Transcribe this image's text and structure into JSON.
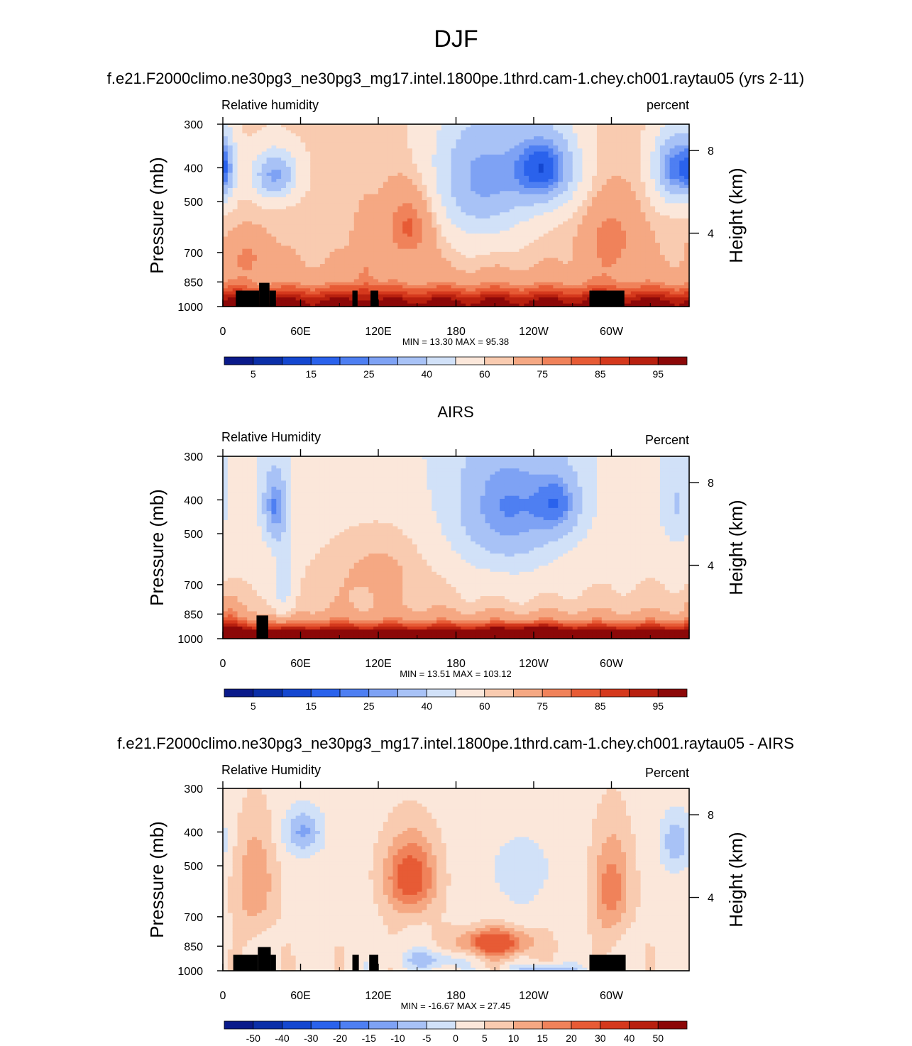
{
  "page": {
    "title": "DJF"
  },
  "colorbar_palette": [
    "#0a1a8a",
    "#0b2fa8",
    "#1447d0",
    "#2a62ec",
    "#4e7ff2",
    "#7ea2f4",
    "#a8c2f6",
    "#d1e1f8",
    "#fbe7da",
    "#f9cbb0",
    "#f5a883",
    "#f0825a",
    "#e75b35",
    "#d5391d",
    "#b8200f",
    "#8c0808"
  ],
  "chart_data": [
    {
      "type": "heatmap",
      "title": "f.e21.F2000climo.ne30pg3_ne30pg3_mg17.intel.1800pe.1thrd.cam-1.chey.ch001.raytau05 (yrs 2-11)",
      "left_label": "Relative humidity",
      "right_label": "percent",
      "ylabel": "Pressure (mb)",
      "y2label": "Height (km)",
      "xlabel": "",
      "x_ticks": [
        "0",
        "60E",
        "120E",
        "180",
        "120W",
        "60W"
      ],
      "x_tick_positions": [
        0,
        60,
        120,
        180,
        240,
        300
      ],
      "xlim": [
        0,
        360
      ],
      "y_ticks": [
        "300",
        "400",
        "500",
        "700",
        "850",
        "1000"
      ],
      "y_tick_values": [
        300,
        400,
        500,
        700,
        850,
        1000
      ],
      "ylim": [
        300,
        1000
      ],
      "y_scale": "log",
      "y2_ticks": [
        "8",
        "4"
      ],
      "y2_tick_pressures": [
        357,
        616
      ],
      "stats": "MIN =  13.30  MAX =  95.38",
      "colorbar_labels": [
        "5",
        "15",
        "25",
        "40",
        "60",
        "75",
        "85",
        "95"
      ],
      "colorbar_levels": [
        0,
        5,
        10,
        15,
        20,
        25,
        30,
        40,
        50,
        60,
        65,
        75,
        80,
        85,
        90,
        95,
        100
      ],
      "field": {
        "base": 62,
        "base_slope": 0.006,
        "surface_boost": 32,
        "surface_depth": 130,
        "anomalies": [
          {
            "lon": 40,
            "p": 420,
            "amp": -35,
            "slon": 18,
            "sp": 70
          },
          {
            "lon": 2,
            "p": 400,
            "amp": -25,
            "slon": 8,
            "sp": 90
          },
          {
            "lon": 200,
            "p": 430,
            "amp": -35,
            "slon": 40,
            "sp": 200
          },
          {
            "lon": 250,
            "p": 400,
            "amp": -40,
            "slon": 25,
            "sp": 110
          },
          {
            "lon": 348,
            "p": 400,
            "amp": -40,
            "slon": 16,
            "sp": 100
          },
          {
            "lon": 145,
            "p": 580,
            "amp": 20,
            "slon": 20,
            "sp": 150
          },
          {
            "lon": 20,
            "p": 720,
            "amp": 12,
            "slon": 15,
            "sp": 100
          },
          {
            "lon": 300,
            "p": 640,
            "amp": 15,
            "slon": 20,
            "sp": 170
          },
          {
            "lon": 110,
            "p": 750,
            "amp": 10,
            "slon": 8,
            "sp": 200
          }
        ]
      },
      "masks": [
        {
          "lon": [
            10,
            28
          ],
          "p_top": 900
        },
        {
          "lon": [
            28,
            36
          ],
          "p_top": 855
        },
        {
          "lon": [
            36,
            41
          ],
          "p_top": 900
        },
        {
          "lon": [
            100,
            104
          ],
          "p_top": 900
        },
        {
          "lon": [
            114,
            120
          ],
          "p_top": 900
        },
        {
          "lon": [
            283,
            310
          ],
          "p_top": 900
        }
      ]
    },
    {
      "type": "heatmap",
      "title": "AIRS",
      "left_label": "Relative Humidity",
      "right_label": "Percent",
      "ylabel": "Pressure (mb)",
      "y2label": "Height (km)",
      "xlabel": "",
      "x_ticks": [
        "0",
        "60E",
        "120E",
        "180",
        "120W",
        "60W"
      ],
      "x_tick_positions": [
        0,
        60,
        120,
        180,
        240,
        300
      ],
      "xlim": [
        0,
        360
      ],
      "y_ticks": [
        "300",
        "400",
        "500",
        "700",
        "850",
        "1000"
      ],
      "y_tick_values": [
        300,
        400,
        500,
        700,
        850,
        1000
      ],
      "ylim": [
        300,
        1000
      ],
      "y_scale": "log",
      "y2_ticks": [
        "8",
        "4"
      ],
      "y2_tick_pressures": [
        357,
        616
      ],
      "stats": "MIN =  13.51  MAX = 103.12",
      "colorbar_labels": [
        "5",
        "15",
        "25",
        "40",
        "60",
        "75",
        "85",
        "95"
      ],
      "colorbar_levels": [
        0,
        5,
        10,
        15,
        20,
        25,
        30,
        40,
        50,
        60,
        65,
        75,
        80,
        85,
        90,
        95,
        100
      ],
      "field": {
        "base": 52,
        "base_slope": 0.02,
        "surface_boost": 42,
        "surface_depth": 100,
        "anomalies": [
          {
            "lon": 40,
            "p": 420,
            "amp": -30,
            "slon": 10,
            "sp": 110
          },
          {
            "lon": 47,
            "p": 700,
            "amp": -18,
            "slon": 8,
            "sp": 180
          },
          {
            "lon": 220,
            "p": 430,
            "amp": -30,
            "slon": 45,
            "sp": 200
          },
          {
            "lon": 260,
            "p": 410,
            "amp": -20,
            "slon": 18,
            "sp": 90
          },
          {
            "lon": 350,
            "p": 420,
            "amp": -15,
            "slon": 12,
            "sp": 120
          },
          {
            "lon": 120,
            "p": 600,
            "amp": 8,
            "slon": 45,
            "sp": 200
          },
          {
            "lon": 5,
            "p": 850,
            "amp": 10,
            "slon": 8,
            "sp": 90
          },
          {
            "lon": 240,
            "p": 960,
            "amp": 8,
            "slon": 25,
            "sp": 60
          }
        ]
      },
      "masks": [
        {
          "lon": [
            26,
            35
          ],
          "p_top": 858
        }
      ]
    },
    {
      "type": "heatmap",
      "title": "f.e21.F2000climo.ne30pg3_ne30pg3_mg17.intel.1800pe.1thrd.cam-1.chey.ch001.raytau05 - AIRS",
      "left_label": "Relative Humidity",
      "right_label": "Percent",
      "ylabel": "Pressure (mb)",
      "y2label": "Height (km)",
      "xlabel": "",
      "x_ticks": [
        "0",
        "60E",
        "120E",
        "180",
        "120W",
        "60W"
      ],
      "x_tick_positions": [
        0,
        60,
        120,
        180,
        240,
        300
      ],
      "xlim": [
        0,
        360
      ],
      "y_ticks": [
        "300",
        "400",
        "500",
        "700",
        "850",
        "1000"
      ],
      "y_tick_values": [
        300,
        400,
        500,
        700,
        850,
        1000
      ],
      "ylim": [
        300,
        1000
      ],
      "y_scale": "log",
      "y2_ticks": [
        "8",
        "4"
      ],
      "y2_tick_pressures": [
        357,
        616
      ],
      "stats": "MIN = -16.67  MAX =  27.45",
      "colorbar_labels": [
        "-50",
        "-40",
        "-30",
        "-20",
        "-15",
        "-10",
        "-5",
        "0",
        "5",
        "10",
        "15",
        "20",
        "30",
        "40",
        "50"
      ],
      "colorbar_levels": [
        -100,
        -50,
        -40,
        -30,
        -20,
        -15,
        -10,
        -5,
        0,
        5,
        10,
        15,
        20,
        30,
        40,
        50,
        100
      ],
      "field": {
        "base": 3,
        "base_slope": 0,
        "surface_boost": 0,
        "surface_depth": 100,
        "anomalies": [
          {
            "lon": 145,
            "p": 540,
            "amp": 22,
            "slon": 20,
            "sp": 140
          },
          {
            "lon": 210,
            "p": 830,
            "amp": 24,
            "slon": 28,
            "sp": 80
          },
          {
            "lon": 25,
            "p": 560,
            "amp": 12,
            "slon": 15,
            "sp": 200
          },
          {
            "lon": 300,
            "p": 580,
            "amp": 15,
            "slon": 15,
            "sp": 200
          },
          {
            "lon": 62,
            "p": 400,
            "amp": -14,
            "slon": 15,
            "sp": 60
          },
          {
            "lon": 350,
            "p": 430,
            "amp": -12,
            "slon": 12,
            "sp": 80
          },
          {
            "lon": 160,
            "p": 930,
            "amp": -10,
            "slon": 25,
            "sp": 60
          },
          {
            "lon": 250,
            "p": 990,
            "amp": -12,
            "slon": 25,
            "sp": 30
          },
          {
            "lon": 230,
            "p": 520,
            "amp": -4,
            "slon": 40,
            "sp": 200
          }
        ]
      },
      "masks": [
        {
          "lon": [
            8,
            27
          ],
          "p_top": 900
        },
        {
          "lon": [
            27,
            37
          ],
          "p_top": 855
        },
        {
          "lon": [
            37,
            41
          ],
          "p_top": 900
        },
        {
          "lon": [
            100,
            105
          ],
          "p_top": 900
        },
        {
          "lon": [
            113,
            120
          ],
          "p_top": 900
        },
        {
          "lon": [
            283,
            311
          ],
          "p_top": 900
        }
      ]
    }
  ]
}
